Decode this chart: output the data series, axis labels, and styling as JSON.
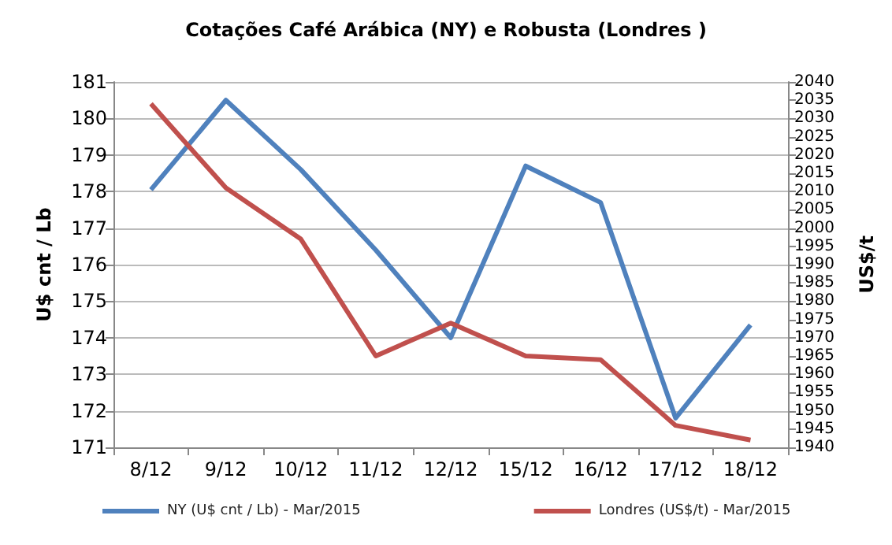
{
  "chart_data": {
    "type": "line",
    "title": "Cotações Café Arábica (NY) e Robusta (Londres )",
    "ylabel": "U$ cnt / Lb",
    "y2label": "US$/t",
    "categories": [
      "8/12",
      "9/12",
      "10/12",
      "11/12",
      "12/12",
      "15/12",
      "16/12",
      "17/12",
      "18/12"
    ],
    "series": [
      {
        "name": "NY (U$ cnt / Lb) - Mar/2015",
        "color": "#4f81bd",
        "values": [
          178.05,
          180.5,
          178.6,
          176.4,
          174.0,
          178.7,
          177.7,
          171.8,
          174.35
        ]
      },
      {
        "name": "Londres (US$/t) - Mar/2015",
        "color": "#c0504d",
        "axis": "y2",
        "values": [
          2034,
          2011,
          1997,
          1965,
          1974,
          1965,
          1964,
          1946,
          1942
        ]
      }
    ],
    "ylim": [
      171,
      181
    ],
    "yticks": [
      171,
      172,
      173,
      174,
      175,
      176,
      177,
      178,
      179,
      180,
      181
    ],
    "y2lim": [
      1940,
      2040
    ],
    "y2ticks": [
      1940,
      1945,
      1950,
      1955,
      1960,
      1965,
      1970,
      1975,
      1980,
      1985,
      1990,
      1995,
      2000,
      2005,
      2010,
      2015,
      2020,
      2025,
      2030,
      2035,
      2040
    ],
    "grid": "y",
    "legend": "bottom left",
    "marker": "none",
    "line_style": "solid"
  }
}
